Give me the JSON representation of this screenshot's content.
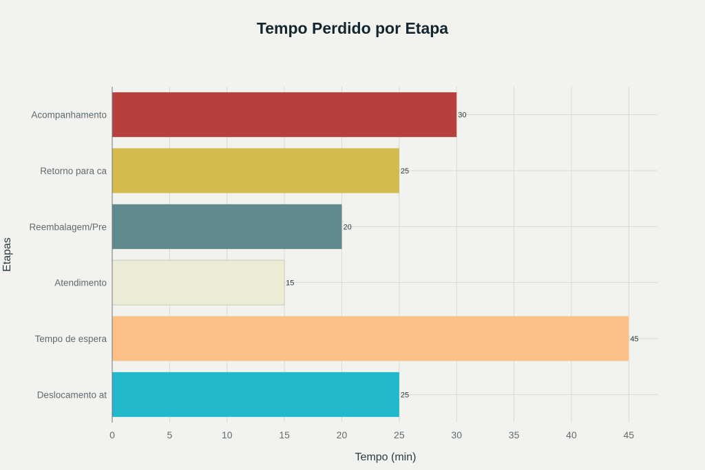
{
  "chart_data": {
    "type": "bar",
    "orientation": "horizontal",
    "title": "Tempo Perdido por Etapa",
    "xlabel": "Tempo (min)",
    "ylabel": "Etapas",
    "xlim": [
      0,
      47.5
    ],
    "xticks": [
      0,
      5,
      10,
      15,
      20,
      25,
      30,
      35,
      40,
      45
    ],
    "grid": true,
    "categories": [
      "Acompanhamento",
      "Retorno para ca",
      "Reembalagem/Pre",
      "Atendimento",
      "Tempo de espera",
      "Deslocamento at"
    ],
    "values": [
      30,
      25,
      20,
      15,
      45,
      25
    ],
    "colors": [
      "#b5403c",
      "#d3ba4c",
      "#5f8a8e",
      "#ecebd6",
      "#fdc187",
      "#21b8cc"
    ]
  }
}
